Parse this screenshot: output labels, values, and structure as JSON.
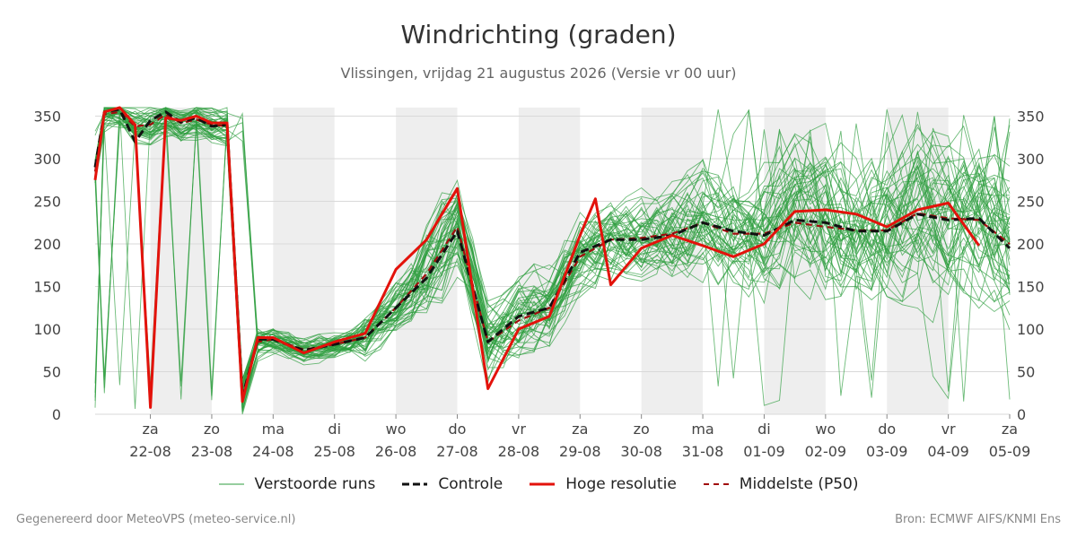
{
  "header": {
    "title": "Windrichting (graden)",
    "subtitle": "Vlissingen, vrijdag 21 augustus 2026 (Versie vr 00 uur)"
  },
  "footer": {
    "left": "Gegenereerd door MeteoVPS (meteo-service.nl)",
    "right": "Bron: ECMWF AIFS/KNMI Ens"
  },
  "legend": [
    {
      "label": "Verstoorde runs",
      "color": "#2e9e3e",
      "style": "thin"
    },
    {
      "label": "Controle",
      "color": "#111111",
      "style": "dashed"
    },
    {
      "label": "Hoge resolutie",
      "color": "#e3120b",
      "style": "solid"
    },
    {
      "label": "Middelste (P50)",
      "color": "#a10d0d",
      "style": "dashed"
    }
  ],
  "colors": {
    "ensemble": "#2e9e3e",
    "control": "#111111",
    "hires": "#e3120b",
    "median": "#a10d0d",
    "weekend_band": "#eeeeee",
    "grid": "#d9d9d9"
  },
  "chart_data": {
    "type": "line",
    "x_unit": "days since 2026-08-21 00:00",
    "xlim": [
      0,
      15
    ],
    "ylim": [
      0,
      360
    ],
    "y_ticks": [
      0,
      50,
      100,
      150,
      200,
      250,
      300,
      350
    ],
    "x_ticks": [
      {
        "day": "za",
        "date": "22-08"
      },
      {
        "day": "zo",
        "date": "23-08"
      },
      {
        "day": "ma",
        "date": "24-08"
      },
      {
        "day": "di",
        "date": "25-08"
      },
      {
        "day": "wo",
        "date": "26-08"
      },
      {
        "day": "do",
        "date": "27-08"
      },
      {
        "day": "vr",
        "date": "28-08"
      },
      {
        "day": "za",
        "date": "29-08"
      },
      {
        "day": "zo",
        "date": "30-08"
      },
      {
        "day": "ma",
        "date": "31-08"
      },
      {
        "day": "di",
        "date": "01-09"
      },
      {
        "day": "wo",
        "date": "02-09"
      },
      {
        "day": "do",
        "date": "03-09"
      },
      {
        "day": "vr",
        "date": "04-09"
      },
      {
        "day": "za",
        "date": "05-09"
      }
    ],
    "shaded_bands": [
      [
        1,
        2
      ],
      [
        3,
        4
      ],
      [
        5,
        6
      ],
      [
        7,
        8
      ],
      [
        9,
        10
      ],
      [
        11,
        12
      ],
      [
        13,
        14
      ]
    ],
    "grid": true,
    "legend_position": "bottom",
    "ensemble_members": 50,
    "series": [
      {
        "name": "Hoge resolutie",
        "x": [
          0,
          0.25,
          0.5,
          0.75,
          1.0,
          1.25,
          1.5,
          1.75,
          2.0,
          2.25,
          2.5,
          2.75,
          3.0,
          3.5,
          4.0,
          4.5,
          5.0,
          5.5,
          6.0,
          6.5,
          7.0,
          7.5,
          8.0,
          8.25,
          8.5,
          9.0,
          9.5,
          10.0,
          10.5,
          11.0,
          11.5,
          12.0,
          12.5,
          13.0,
          13.5,
          14.0,
          14.5,
          15.0
        ],
        "y": [
          275,
          355,
          360,
          340,
          8,
          348,
          345,
          350,
          342,
          342,
          15,
          90,
          90,
          72,
          85,
          95,
          170,
          205,
          265,
          30,
          100,
          115,
          210,
          253,
          152,
          195,
          210,
          198,
          185,
          200,
          238,
          240,
          235,
          220,
          240,
          248,
          198,
          null
        ]
      },
      {
        "name": "Controle",
        "x": [
          0,
          0.25,
          0.5,
          0.75,
          1.0,
          1.25,
          1.5,
          1.75,
          2.0,
          2.25,
          2.5,
          2.75,
          3.0,
          3.5,
          4.0,
          4.5,
          5.0,
          5.5,
          6.0,
          6.5,
          7.0,
          7.5,
          8.0,
          8.5,
          9.0,
          9.5,
          10.0,
          10.5,
          11.0,
          11.5,
          12.0,
          12.5,
          13.0,
          13.5,
          14.0,
          14.5,
          15.0
        ],
        "y": [
          290,
          355,
          358,
          320,
          345,
          355,
          343,
          348,
          338,
          340,
          20,
          88,
          88,
          75,
          82,
          90,
          125,
          160,
          215,
          85,
          115,
          125,
          190,
          205,
          205,
          210,
          225,
          215,
          210,
          228,
          225,
          215,
          215,
          235,
          228,
          230,
          195
        ]
      },
      {
        "name": "Middelste (P50)",
        "x": [
          0,
          0.25,
          0.5,
          0.75,
          1.0,
          1.25,
          1.5,
          1.75,
          2.0,
          2.25,
          2.5,
          2.75,
          3.0,
          3.5,
          4.0,
          4.5,
          5.0,
          5.5,
          6.0,
          6.5,
          7.0,
          7.5,
          8.0,
          8.5,
          9.0,
          9.5,
          10.0,
          10.5,
          11.0,
          11.5,
          12.0,
          12.5,
          13.0,
          13.5,
          14.0,
          14.5,
          15.0
        ],
        "y": [
          285,
          352,
          355,
          338,
          340,
          352,
          342,
          346,
          340,
          338,
          22,
          85,
          88,
          76,
          82,
          90,
          125,
          165,
          220,
          85,
          110,
          125,
          185,
          205,
          207,
          212,
          225,
          212,
          212,
          225,
          220,
          216,
          216,
          236,
          230,
          228,
          200
        ]
      }
    ]
  }
}
